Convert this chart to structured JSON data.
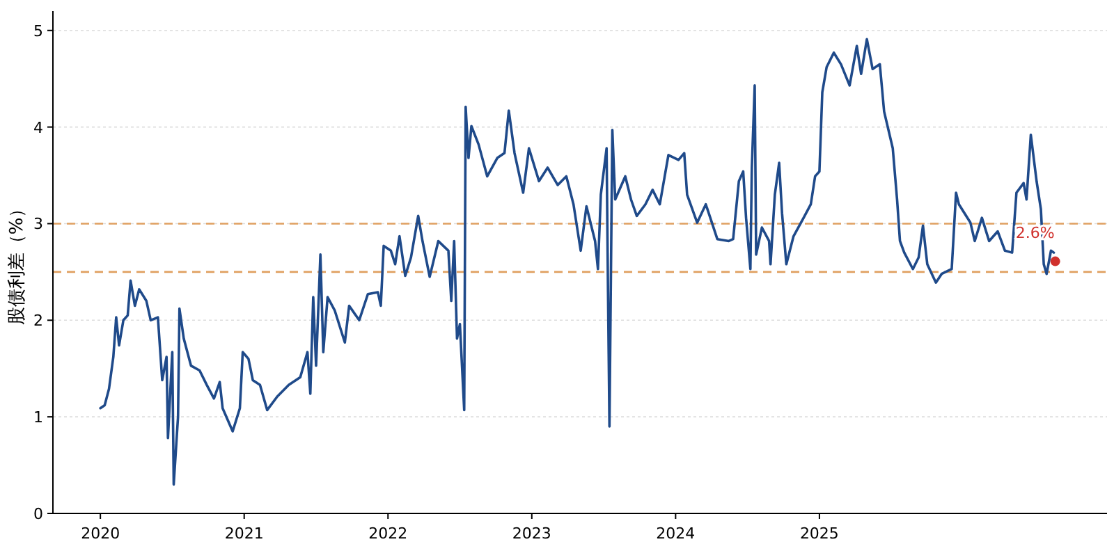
{
  "chart_data": {
    "type": "line",
    "ylabel": "股债利差（%）",
    "xlim": [
      2019.67,
      2027.0
    ],
    "xticks": [
      2020,
      2021,
      2022,
      2023,
      2024,
      2025
    ],
    "ylim": [
      0,
      5.2
    ],
    "yticks": [
      0,
      1,
      2,
      3,
      4,
      5
    ],
    "grid": "y",
    "series": [
      {
        "color": "#1f4a8a",
        "x": [
          2020.0,
          2020.03,
          2020.06,
          2020.09,
          2020.11,
          2020.13,
          2020.16,
          2020.19,
          2020.21,
          2020.24,
          2020.27,
          2020.32,
          2020.35,
          2020.4,
          2020.43,
          2020.46,
          2020.47,
          2020.5,
          2020.51,
          2020.54,
          2020.55,
          2020.58,
          2020.63,
          2020.69,
          2020.74,
          2020.79,
          2020.83,
          2020.85,
          2020.92,
          2020.97,
          2020.99,
          2021.03,
          2021.06,
          2021.11,
          2021.16,
          2021.23,
          2021.31,
          2021.39,
          2021.44,
          2021.46,
          2021.48,
          2021.5,
          2021.53,
          2021.55,
          2021.58,
          2021.63,
          2021.7,
          2021.73,
          2021.8,
          2021.86,
          2021.93,
          2021.95,
          2021.97,
          2022.02,
          2022.05,
          2022.08,
          2022.12,
          2022.16,
          2022.21,
          2022.24,
          2022.29,
          2022.35,
          2022.42,
          2022.44,
          2022.46,
          2022.48,
          2022.5,
          2022.53,
          2022.54,
          2022.56,
          2022.58,
          2022.63,
          2022.69,
          2022.76,
          2022.81,
          2022.84,
          2022.88,
          2022.94,
          2022.98,
          2023.05,
          2023.11,
          2023.18,
          2023.24,
          2023.29,
          2023.34,
          2023.38,
          2023.44,
          2023.46,
          2023.48,
          2023.52,
          2023.53,
          2023.54,
          2023.56,
          2023.58,
          2023.65,
          2023.69,
          2023.73,
          2023.79,
          2023.84,
          2023.89,
          2023.95,
          2024.02,
          2024.06,
          2024.08,
          2024.15,
          2024.21,
          2024.29,
          2024.37,
          2024.4,
          2024.44,
          2024.47,
          2024.49,
          2024.52,
          2024.53,
          2024.55,
          2024.56,
          2024.6,
          2024.65,
          2024.66,
          2024.69,
          2024.72,
          2024.74,
          2024.77,
          2024.82,
          2024.89,
          2024.94,
          2024.97,
          2025.0,
          2025.02,
          2025.05,
          2025.1,
          2025.15,
          2025.21,
          2025.26,
          2025.29,
          2025.33,
          2025.37,
          2025.42,
          2025.45,
          2025.48,
          2025.51,
          2025.54,
          2025.56,
          2025.59,
          2025.65,
          2025.69,
          2025.72,
          2025.75,
          2025.81,
          2025.85,
          2025.92,
          2025.95,
          2025.97,
          2026.05,
          2026.08,
          2026.13,
          2026.18,
          2026.24,
          2026.29,
          2026.34,
          2026.37,
          2026.42,
          2026.44,
          2026.47,
          2026.49,
          2026.51,
          2026.54,
          2026.56,
          2026.58,
          2026.61,
          2026.63
        ],
        "values": [
          1.09,
          1.12,
          1.29,
          1.62,
          2.03,
          1.74,
          2.0,
          2.05,
          2.41,
          2.15,
          2.32,
          2.2,
          2.0,
          2.03,
          1.38,
          1.62,
          0.78,
          1.67,
          0.3,
          1.0,
          2.12,
          1.81,
          1.53,
          1.48,
          1.33,
          1.19,
          1.36,
          1.09,
          0.85,
          1.09,
          1.67,
          1.6,
          1.38,
          1.33,
          1.07,
          1.21,
          1.33,
          1.41,
          1.67,
          1.24,
          2.24,
          1.53,
          2.68,
          1.67,
          2.24,
          2.1,
          1.77,
          2.15,
          2.0,
          2.27,
          2.29,
          2.15,
          2.77,
          2.72,
          2.58,
          2.87,
          2.46,
          2.65,
          3.08,
          2.82,
          2.45,
          2.82,
          2.72,
          2.2,
          2.82,
          1.81,
          1.96,
          1.07,
          4.21,
          3.68,
          4.01,
          3.82,
          3.49,
          3.68,
          3.73,
          4.17,
          3.73,
          3.32,
          3.78,
          3.44,
          3.58,
          3.4,
          3.49,
          3.2,
          2.72,
          3.18,
          2.82,
          2.53,
          3.3,
          3.78,
          2.29,
          0.9,
          3.97,
          3.25,
          3.49,
          3.25,
          3.08,
          3.2,
          3.35,
          3.2,
          3.71,
          3.66,
          3.73,
          3.3,
          3.01,
          3.2,
          2.84,
          2.82,
          2.84,
          3.44,
          3.54,
          3.06,
          2.53,
          3.58,
          4.43,
          2.68,
          2.96,
          2.82,
          2.58,
          3.3,
          3.63,
          3.11,
          2.58,
          2.87,
          3.06,
          3.2,
          3.49,
          3.54,
          4.36,
          4.62,
          4.77,
          4.65,
          4.43,
          4.84,
          4.55,
          4.91,
          4.6,
          4.65,
          4.16,
          3.97,
          3.78,
          3.25,
          2.82,
          2.7,
          2.53,
          2.65,
          2.98,
          2.58,
          2.39,
          2.48,
          2.53,
          3.32,
          3.2,
          3.01,
          2.82,
          3.06,
          2.82,
          2.92,
          2.72,
          2.7,
          3.32,
          3.42,
          3.25,
          3.92,
          3.68,
          3.44,
          3.15,
          2.58,
          2.48,
          2.72,
          2.7
        ]
      },
      {
        "type": "scatter",
        "color": "#d0312d",
        "x": [
          2026.64
        ],
        "values": [
          2.61
        ]
      }
    ],
    "ref_lines": [
      {
        "axis": "y",
        "value": 3,
        "color": "#e0a060",
        "line_style": "dashed"
      },
      {
        "axis": "y",
        "value": 2.5,
        "color": "#e0a060",
        "line_style": "dashed"
      }
    ],
    "annotations": [
      {
        "text": "2.6%",
        "x": 2026.5,
        "y": 2.85
      }
    ]
  }
}
